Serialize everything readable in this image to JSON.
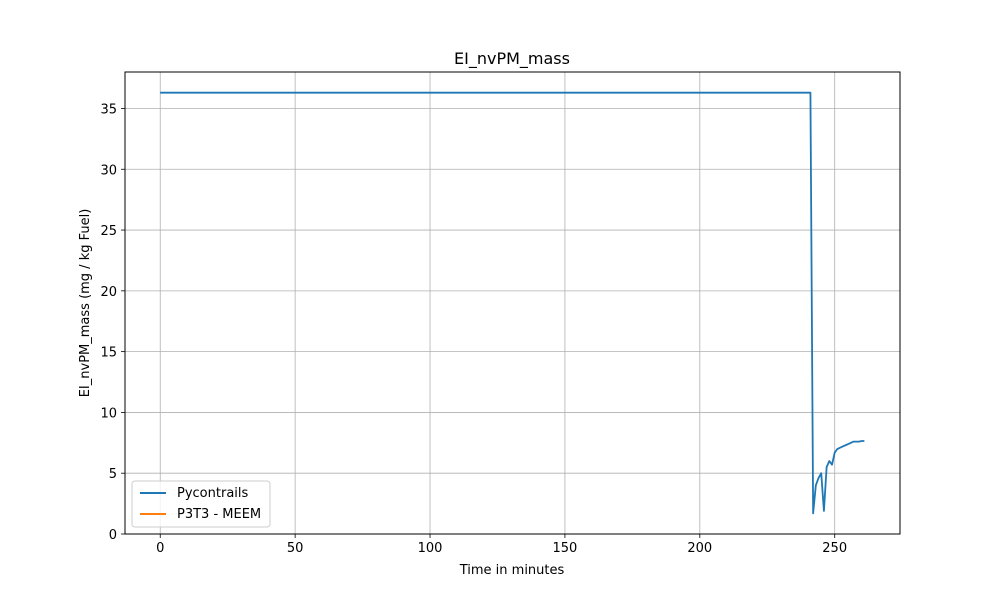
{
  "chart_data": {
    "type": "line",
    "title": "EI_nvPM_mass",
    "xlabel": "Time in minutes",
    "ylabel": "EI_nvPM_mass (mg / kg Fuel)",
    "xlim": [
      -13.06,
      274.2
    ],
    "ylim": [
      0,
      38
    ],
    "xticks": [
      0,
      50,
      100,
      150,
      200,
      250
    ],
    "yticks": [
      0,
      5,
      10,
      15,
      20,
      25,
      30,
      35
    ],
    "grid": true,
    "legend_position": "lower-left",
    "series": [
      {
        "name": "Pycontrails",
        "color": "#1f77b4",
        "x": [
          0,
          241.0,
          242.0,
          243.0,
          244.0,
          245.0,
          246.0,
          247.0,
          248.0,
          249.0,
          250.0,
          251.0,
          252.0,
          253.0,
          254.0,
          255.0,
          256.0,
          257.0,
          258.0,
          259.0,
          260.0,
          261.0
        ],
        "y": [
          36.3,
          36.3,
          1.7,
          4.0,
          4.6,
          5.0,
          1.9,
          5.5,
          6.0,
          5.7,
          6.7,
          7.0,
          7.1,
          7.2,
          7.3,
          7.4,
          7.5,
          7.6,
          7.6,
          7.6,
          7.65,
          7.65
        ]
      },
      {
        "name": "P3T3 - MEEM",
        "color": "#ff7f0e",
        "x": [],
        "y": []
      }
    ]
  }
}
